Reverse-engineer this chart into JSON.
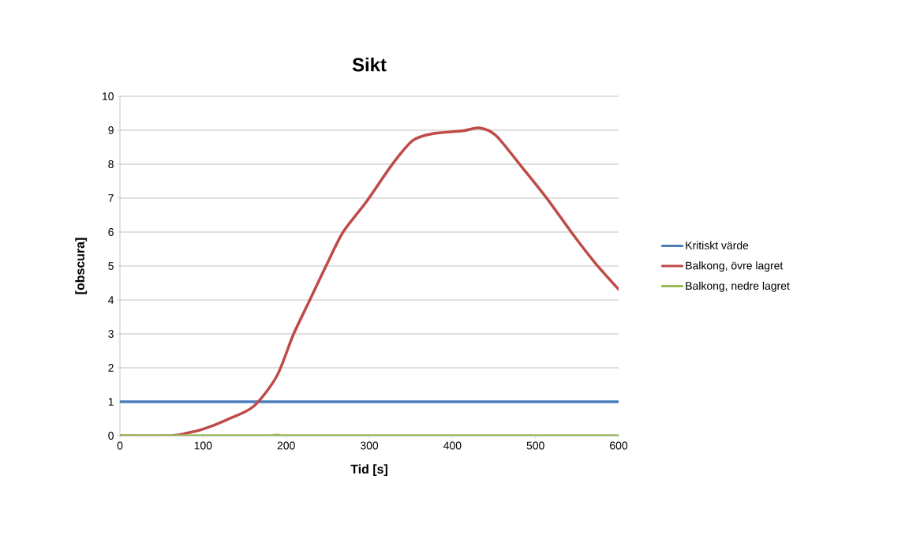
{
  "chart_data": {
    "type": "line",
    "title": "Sikt",
    "xlabel": "Tid [s]",
    "ylabel": "[obscura]",
    "xlim": [
      0,
      600
    ],
    "xticks": [
      0,
      100,
      200,
      300,
      400,
      500,
      600
    ],
    "ylim": [
      0,
      10
    ],
    "yticks": [
      0,
      1,
      2,
      3,
      4,
      5,
      6,
      7,
      8,
      9,
      10
    ],
    "grid": "y",
    "legend": "right",
    "marker": "none",
    "line_style": "solid",
    "series": [
      {
        "name": "Kritiskt värde",
        "color": "#4a7ebb",
        "x": [
          0,
          600
        ],
        "values": [
          1,
          1
        ]
      },
      {
        "name": "Balkong, övre lagret",
        "color": "#be4b48",
        "x": [
          0,
          60.7,
          80.7,
          100.7,
          128.6,
          160.6,
          188.6,
          208.5,
          228.5,
          248.5,
          268.5,
          296.4,
          328.4,
          352.4,
          376.3,
          412.3,
          432.3,
          452.2,
          480.2,
          512.2,
          544.2,
          572.1,
          600
        ],
        "values": [
          0,
          0,
          0.08,
          0.2,
          0.47,
          0.86,
          1.75,
          2.97,
          4.0,
          5.03,
          6.0,
          6.89,
          8.02,
          8.7,
          8.9,
          8.98,
          9.07,
          8.85,
          8.02,
          7.04,
          5.96,
          5.08,
          4.31
        ]
      },
      {
        "name": "Balkong, nedre lagret",
        "color": "#98b954",
        "x": [
          0,
          170,
          190,
          220,
          600
        ],
        "values": [
          0,
          0,
          0.02,
          0,
          0
        ]
      }
    ]
  }
}
